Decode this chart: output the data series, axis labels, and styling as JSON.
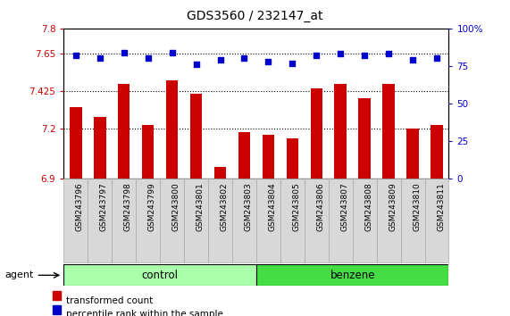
{
  "title": "GDS3560 / 232147_at",
  "samples": [
    "GSM243796",
    "GSM243797",
    "GSM243798",
    "GSM243799",
    "GSM243800",
    "GSM243801",
    "GSM243802",
    "GSM243803",
    "GSM243804",
    "GSM243805",
    "GSM243806",
    "GSM243807",
    "GSM243808",
    "GSM243809",
    "GSM243810",
    "GSM243811"
  ],
  "bar_values": [
    7.33,
    7.27,
    7.47,
    7.22,
    7.49,
    7.41,
    6.97,
    7.18,
    7.16,
    7.14,
    7.44,
    7.47,
    7.38,
    7.47,
    7.2,
    7.22
  ],
  "percentile_values": [
    82,
    80,
    84,
    80,
    84,
    76,
    79,
    80,
    78,
    77,
    82,
    83,
    82,
    83,
    79,
    80
  ],
  "bar_color": "#cc0000",
  "dot_color": "#0000cc",
  "ylim_left": [
    6.9,
    7.8
  ],
  "ylim_right": [
    0,
    100
  ],
  "yticks_left": [
    6.9,
    7.2,
    7.425,
    7.65,
    7.8
  ],
  "ytick_labels_left": [
    "6.9",
    "7.2",
    "7.425",
    "7.65",
    "7.8"
  ],
  "yticks_right": [
    0,
    25,
    50,
    75,
    100
  ],
  "ytick_labels_right": [
    "0",
    "25",
    "50",
    "75",
    "100%"
  ],
  "hlines": [
    7.65,
    7.425,
    7.2
  ],
  "n_control": 8,
  "n_benzene": 8,
  "control_color": "#aaffaa",
  "benzene_color": "#44dd44",
  "agent_label": "agent",
  "control_label": "control",
  "benzene_label": "benzene",
  "legend1": "transformed count",
  "legend2": "percentile rank within the sample",
  "bar_width": 0.5,
  "background_color": "#ffffff",
  "plot_bg_color": "#ffffff",
  "tick_label_color_left": "#cc0000",
  "tick_label_color_right": "#0000cc",
  "xtick_bg_color": "#d8d8d8",
  "cell_border_color": "#aaaaaa"
}
